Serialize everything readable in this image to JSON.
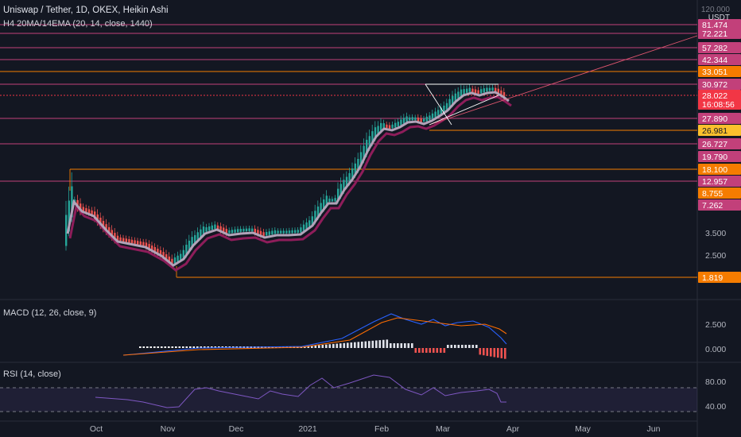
{
  "header": {
    "title": "Uniswap / Tether, 1D, OKEX, Heikin Ashi",
    "indicator": "H4 20MA/14EMA (20, 14, close, 1440)",
    "currency_top": "120.000",
    "currency": "USDT"
  },
  "panes": {
    "macd_label": "MACD (12, 26, close, 9)",
    "rsi_label": "RSI (14, close)"
  },
  "price_axis": {
    "ticks": [
      "3.500",
      "2.500"
    ],
    "levels": [
      {
        "label": "81.474",
        "color": "#c2407a",
        "line": "#c2407a"
      },
      {
        "label": "72.221",
        "color": "#c2407a",
        "line": "#c2407a"
      },
      {
        "label": "57.282",
        "color": "#c2407a",
        "line": "#c2407a"
      },
      {
        "label": "42.344",
        "color": "#c2407a",
        "line": "#c2407a"
      },
      {
        "label": "33.051",
        "color": "#f57c00",
        "line": "#f57c00"
      },
      {
        "label": "30.972",
        "color": "#c2407a",
        "line": "#c2407a"
      },
      {
        "label": "28.022",
        "color": "#f23645",
        "line": "#f23645"
      },
      {
        "label": "16:08:56",
        "color": "#f23645",
        "line": ""
      },
      {
        "label": "27.890",
        "color": "#c2407a",
        "line": "#c2407a"
      },
      {
        "label": "26.981",
        "color": "#fbc02d",
        "line": "#f57c00"
      },
      {
        "label": "26.727",
        "color": "#c2407a",
        "line": "#c2407a"
      },
      {
        "label": "19.790",
        "color": "#c2407a",
        "line": ""
      },
      {
        "label": "18.100",
        "color": "#f57c00",
        "line": "#f57c00"
      },
      {
        "label": "12.957",
        "color": "#c2407a",
        "line": "#c2407a"
      },
      {
        "label": "8.755",
        "color": "#f57c00",
        "line": ""
      },
      {
        "label": "7.262",
        "color": "#c2407a",
        "line": ""
      },
      {
        "label": "1.819",
        "color": "#f57c00",
        "line": "#f57c00"
      }
    ]
  },
  "macd_axis": [
    "2.500",
    "0.000"
  ],
  "rsi_axis": [
    "80.00",
    "40.00"
  ],
  "time_axis": [
    "Oct",
    "Nov",
    "Dec",
    "2021",
    "Feb",
    "Mar",
    "Apr",
    "May",
    "Jun"
  ],
  "colors": {
    "background": "#131722",
    "up": "#26a69a",
    "down": "#ef5350",
    "ma": "#b2a2b8",
    "ema": "#8e1d5a",
    "macd": "#2962ff",
    "signal": "#ff6d00",
    "rsi": "#7e57c2"
  }
}
